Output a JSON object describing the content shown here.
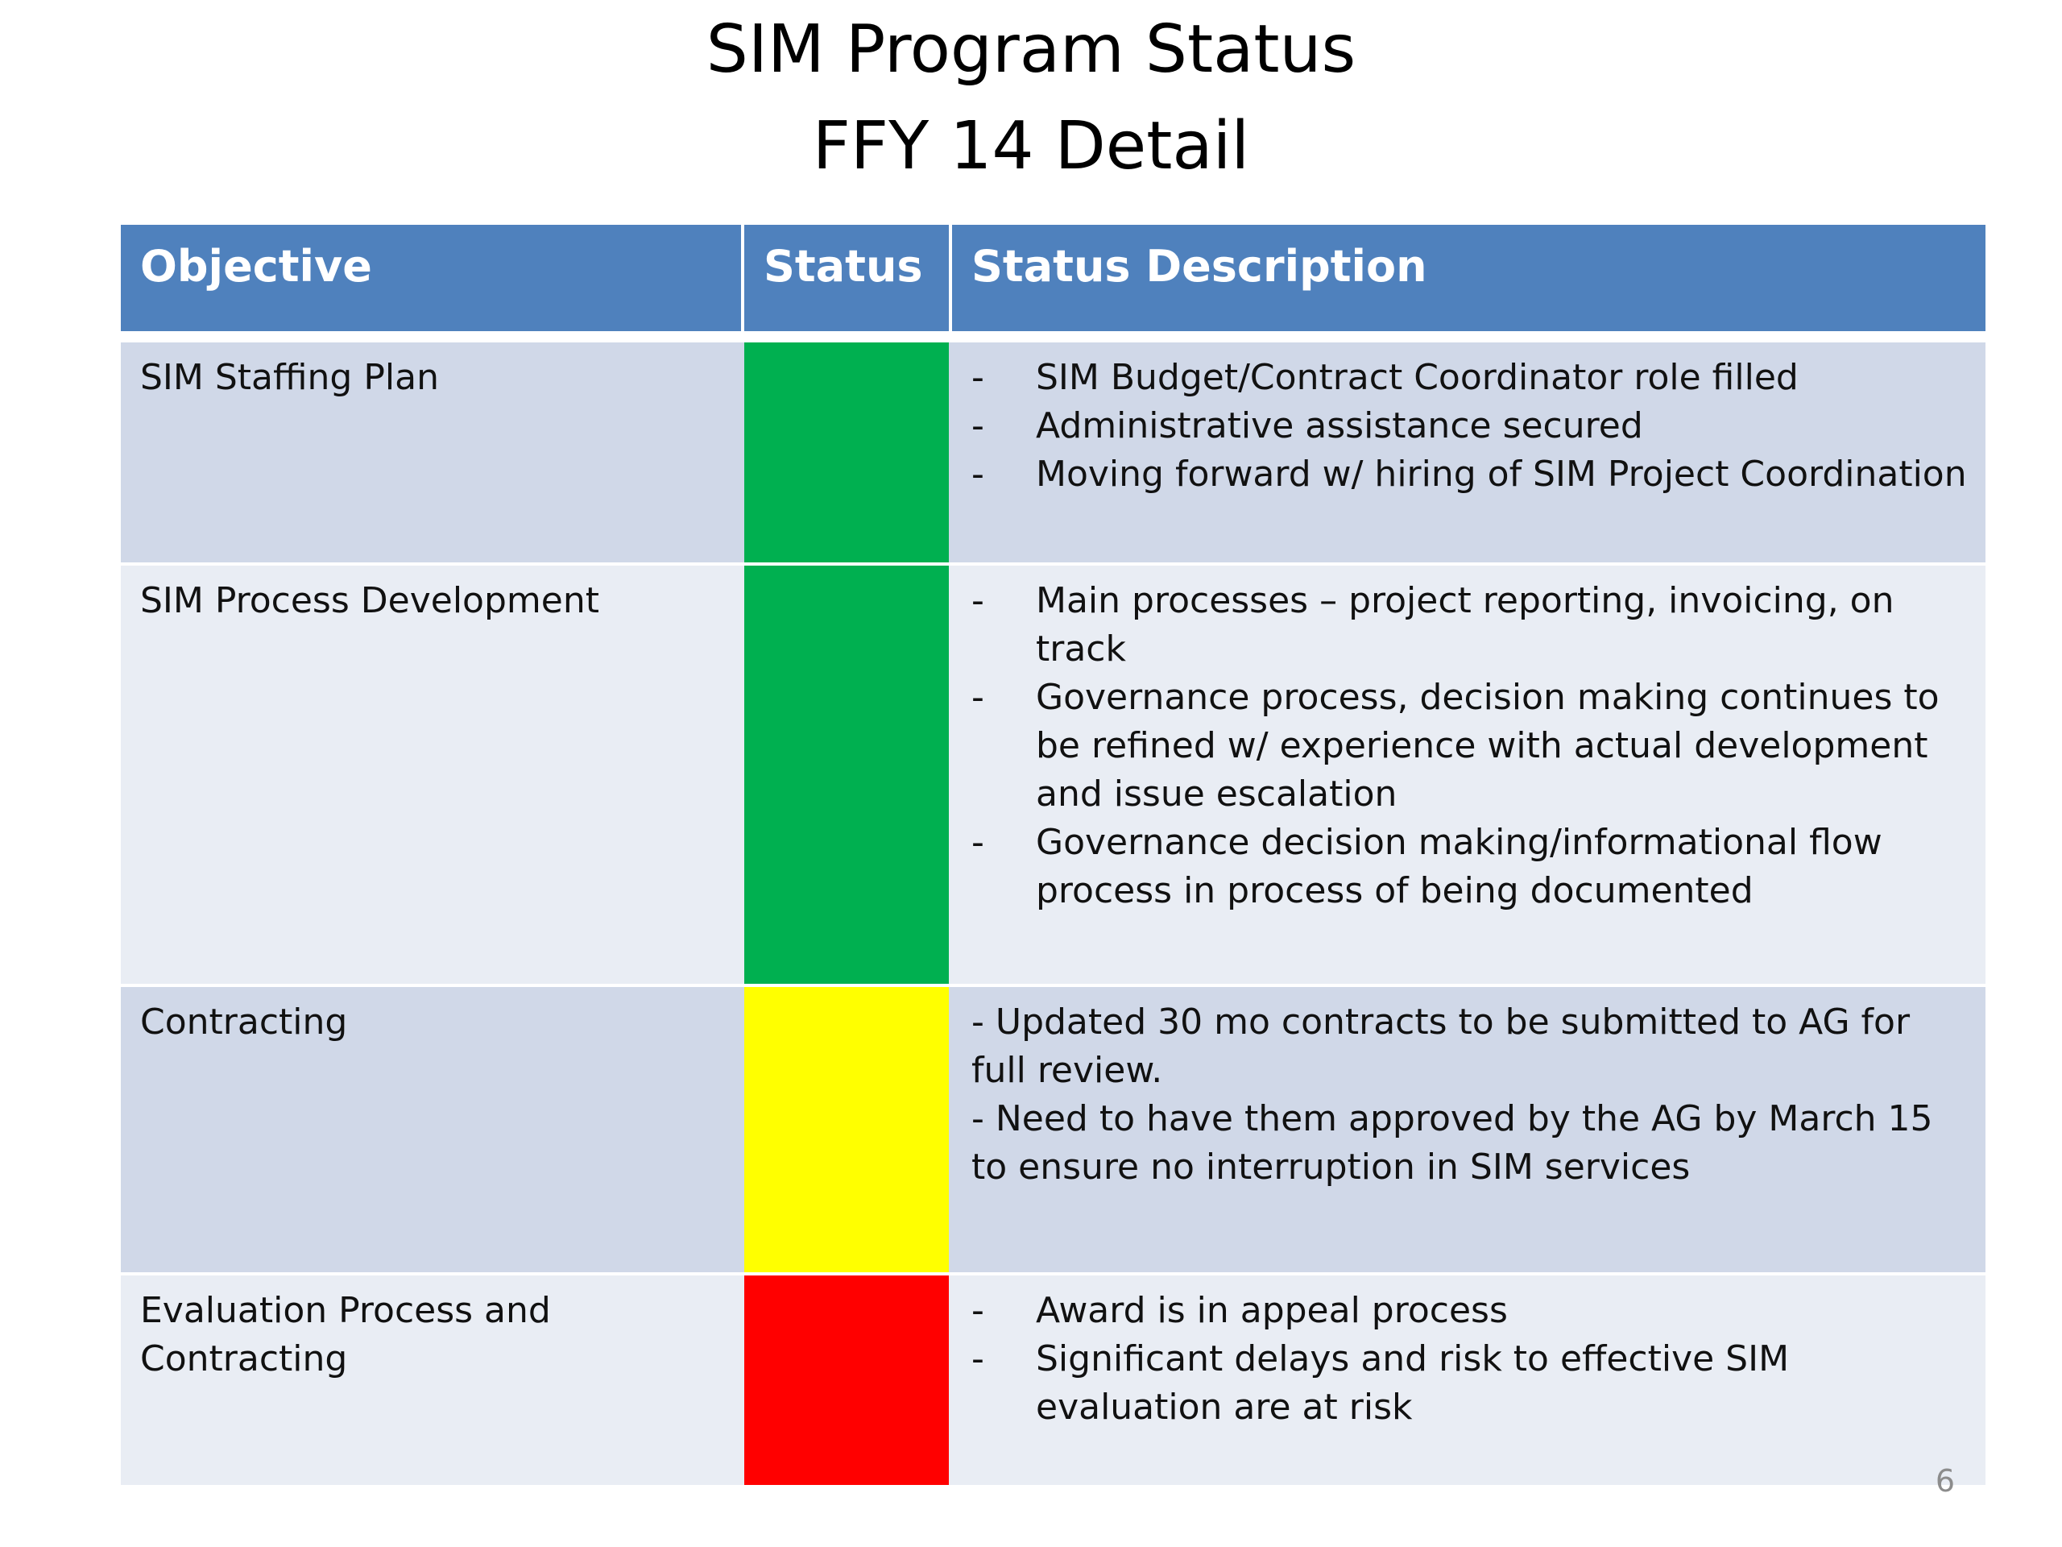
{
  "title": {
    "line1": "SIM Program Status",
    "line2": "FFY 14 Detail"
  },
  "table": {
    "headers": {
      "objective": "Objective",
      "status": "Status",
      "description": "Status Description"
    },
    "rows": [
      {
        "objective": "SIM Staffing Plan",
        "status_color": "#00b050",
        "bullets": [
          "SIM Budget/Contract Coordinator role filled",
          "Administrative assistance secured",
          "Moving forward w/ hiring of SIM Project Coordination"
        ]
      },
      {
        "objective": "SIM Process Development",
        "status_color": "#00b050",
        "bullets": [
          "Main processes – project reporting, invoicing, on track",
          "Governance process, decision making continues to be refined w/ experience with actual development and issue escalation",
          "Governance decision making/informational flow process in process of being documented"
        ]
      },
      {
        "objective": "Contracting",
        "status_color": "#ffff00",
        "lines": [
          "- Updated 30 mo contracts to be submitted to AG for full review.",
          "- Need to have them approved by the AG by March 15 to ensure no interruption in SIM services"
        ]
      },
      {
        "objective": "Evaluation Process and Contracting",
        "status_color": "#ff0000",
        "bullets": [
          "Award is in appeal process",
          "Significant delays and risk to effective SIM evaluation are at risk"
        ]
      }
    ]
  },
  "page_number": "6",
  "colors": {
    "header_bg": "#4f81bd",
    "row_dark": "#d0d8e8",
    "row_light": "#e9edf4"
  }
}
